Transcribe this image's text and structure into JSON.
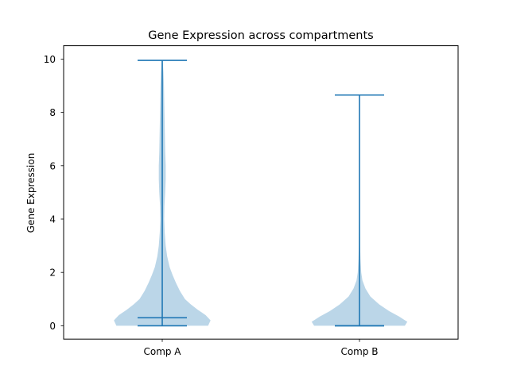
{
  "chart_data": {
    "type": "violin",
    "title": "Gene Expression across compartments",
    "xlabel": "",
    "ylabel": "Gene Expression",
    "categories": [
      "Comp A",
      "Comp B"
    ],
    "ylim": [
      -0.5,
      10.5
    ],
    "yticks": [
      {
        "value": 0,
        "label": "0"
      },
      {
        "value": 2,
        "label": "2"
      },
      {
        "value": 4,
        "label": "4"
      },
      {
        "value": 6,
        "label": "6"
      },
      {
        "value": 8,
        "label": "8"
      },
      {
        "value": 10,
        "label": "10"
      }
    ],
    "grid": false,
    "colors": {
      "body": "#1f77b4",
      "body_alpha": 0.3,
      "lines": "#1f77b4",
      "text": "#000000"
    },
    "violins": [
      {
        "category": "Comp A",
        "min": 0.0,
        "max": 9.95,
        "median": 0.3,
        "density": [
          [
            0.0,
            0.93
          ],
          [
            0.2,
            0.98
          ],
          [
            0.4,
            0.88
          ],
          [
            0.6,
            0.72
          ],
          [
            0.8,
            0.58
          ],
          [
            1.0,
            0.46
          ],
          [
            1.3,
            0.36
          ],
          [
            1.6,
            0.28
          ],
          [
            1.9,
            0.21
          ],
          [
            2.2,
            0.15
          ],
          [
            2.6,
            0.1
          ],
          [
            3.0,
            0.07
          ],
          [
            3.5,
            0.05
          ],
          [
            4.0,
            0.04
          ],
          [
            4.5,
            0.045
          ],
          [
            5.0,
            0.06
          ],
          [
            5.5,
            0.07
          ],
          [
            6.0,
            0.07
          ],
          [
            6.5,
            0.06
          ],
          [
            7.0,
            0.055
          ],
          [
            7.5,
            0.05
          ],
          [
            8.0,
            0.045
          ],
          [
            8.5,
            0.04
          ],
          [
            9.0,
            0.035
          ],
          [
            9.5,
            0.025
          ],
          [
            9.95,
            0.01
          ]
        ]
      },
      {
        "category": "Comp B",
        "min": 0.0,
        "max": 8.65,
        "median": 0.0,
        "density": [
          [
            0.0,
            0.92
          ],
          [
            0.15,
            0.97
          ],
          [
            0.35,
            0.8
          ],
          [
            0.55,
            0.6
          ],
          [
            0.8,
            0.4
          ],
          [
            1.1,
            0.22
          ],
          [
            1.4,
            0.12
          ],
          [
            1.7,
            0.06
          ],
          [
            2.0,
            0.035
          ],
          [
            2.5,
            0.02
          ],
          [
            3.0,
            0.013
          ],
          [
            4.0,
            0.008
          ],
          [
            5.0,
            0.006
          ],
          [
            6.0,
            0.005
          ],
          [
            7.0,
            0.004
          ],
          [
            8.0,
            0.003
          ],
          [
            8.65,
            0.002
          ]
        ]
      }
    ]
  }
}
